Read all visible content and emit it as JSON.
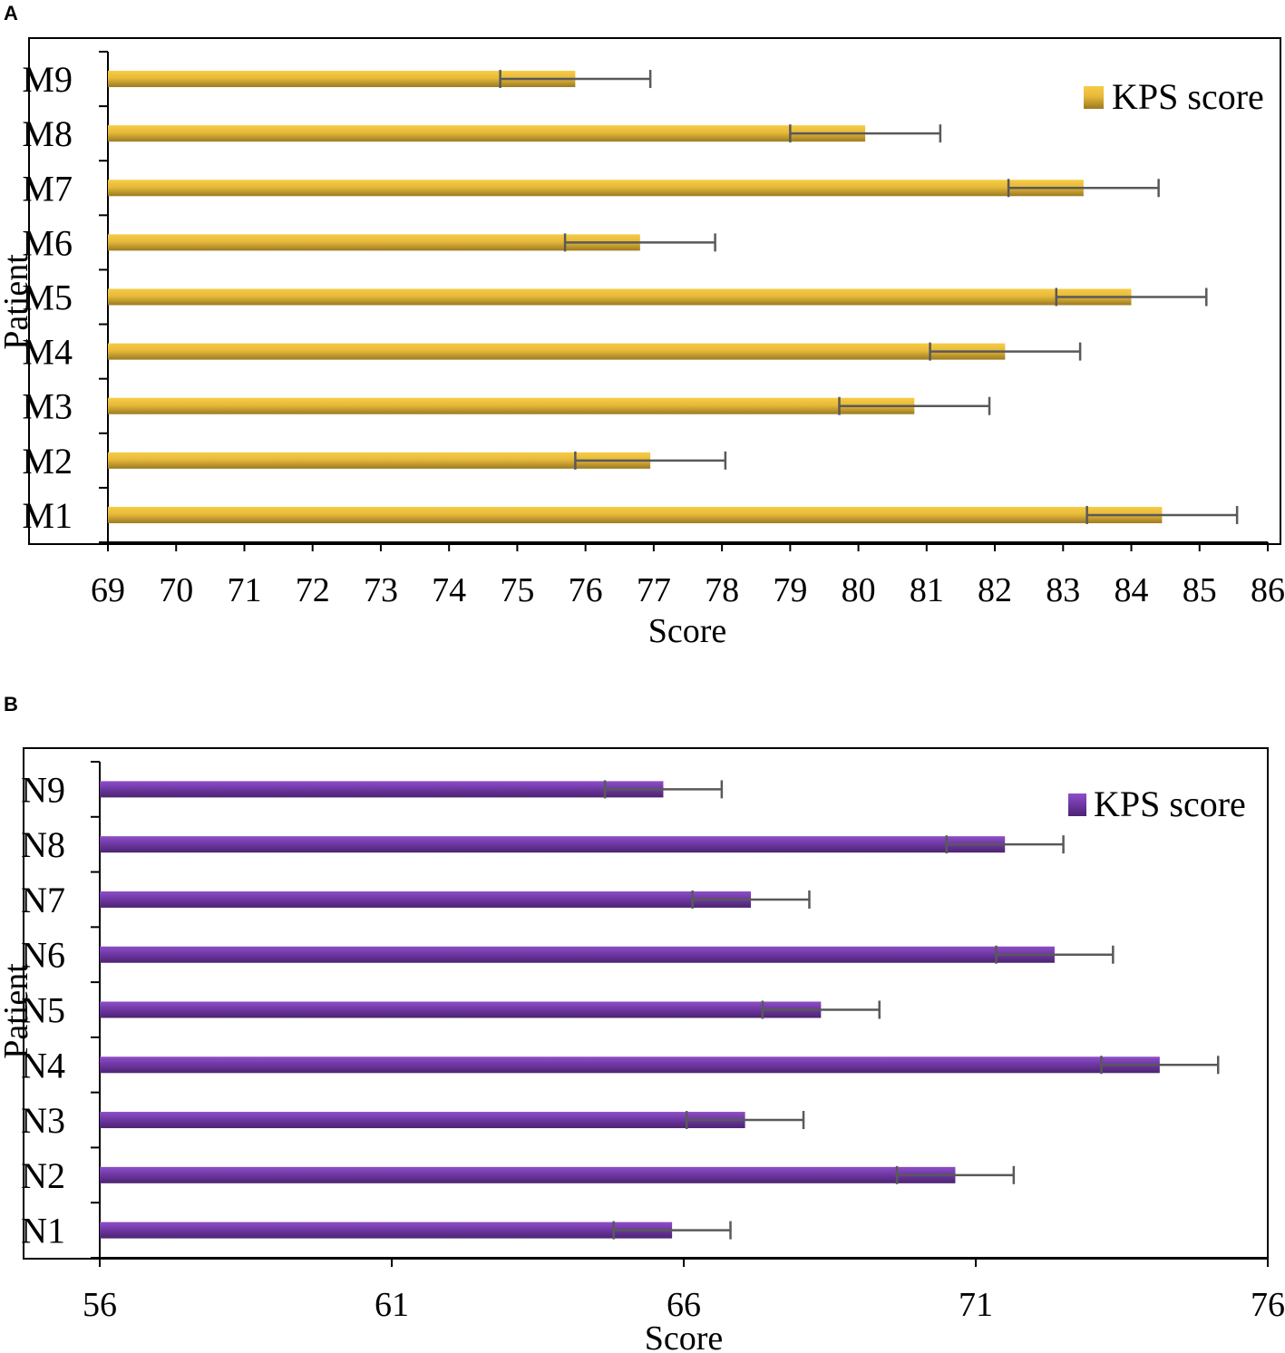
{
  "chart_data": [
    {
      "type": "bar",
      "orientation": "horizontal",
      "panel_label": "A",
      "categories": [
        "M1",
        "M2",
        "M3",
        "M4",
        "M5",
        "M6",
        "M7",
        "M8",
        "M9"
      ],
      "series": [
        {
          "name": "KPS score",
          "values": [
            84.45,
            76.95,
            80.82,
            82.15,
            84.0,
            76.8,
            83.3,
            80.1,
            75.85
          ],
          "error": [
            1.1,
            1.1,
            1.1,
            1.1,
            1.1,
            1.1,
            1.1,
            1.1,
            1.1
          ]
        }
      ],
      "xlim": [
        69,
        86
      ],
      "xticks": [
        "69",
        "70",
        "71",
        "72",
        "73",
        "74",
        "75",
        "76",
        "77",
        "78",
        "79",
        "80",
        "81",
        "82",
        "83",
        "84",
        "85",
        "86"
      ],
      "xlabel": "Score",
      "ylabel": "Patient",
      "legend": "top-right",
      "colors": {
        "bar_light": "#f6cc45",
        "bar_dark": "#9b7a22"
      }
    },
    {
      "type": "bar",
      "orientation": "horizontal",
      "panel_label": "B",
      "categories": [
        "N1",
        "N2",
        "N3",
        "N4",
        "N5",
        "N6",
        "N7",
        "N8",
        "N9"
      ],
      "series": [
        {
          "name": "KPS score",
          "values": [
            65.8,
            70.65,
            67.05,
            74.15,
            68.35,
            72.35,
            67.15,
            71.5,
            65.65
          ],
          "error": [
            1.0,
            1.0,
            1.0,
            1.0,
            1.0,
            1.0,
            1.0,
            1.0,
            1.0
          ]
        }
      ],
      "xlim": [
        56,
        76
      ],
      "xticks": [
        "56",
        "61",
        "66",
        "71",
        "76"
      ],
      "xlabel": "Score",
      "ylabel": "Patient",
      "legend": "top-right",
      "colors": {
        "bar_light": "#8e4fc6",
        "bar_dark": "#4c2470"
      }
    }
  ]
}
